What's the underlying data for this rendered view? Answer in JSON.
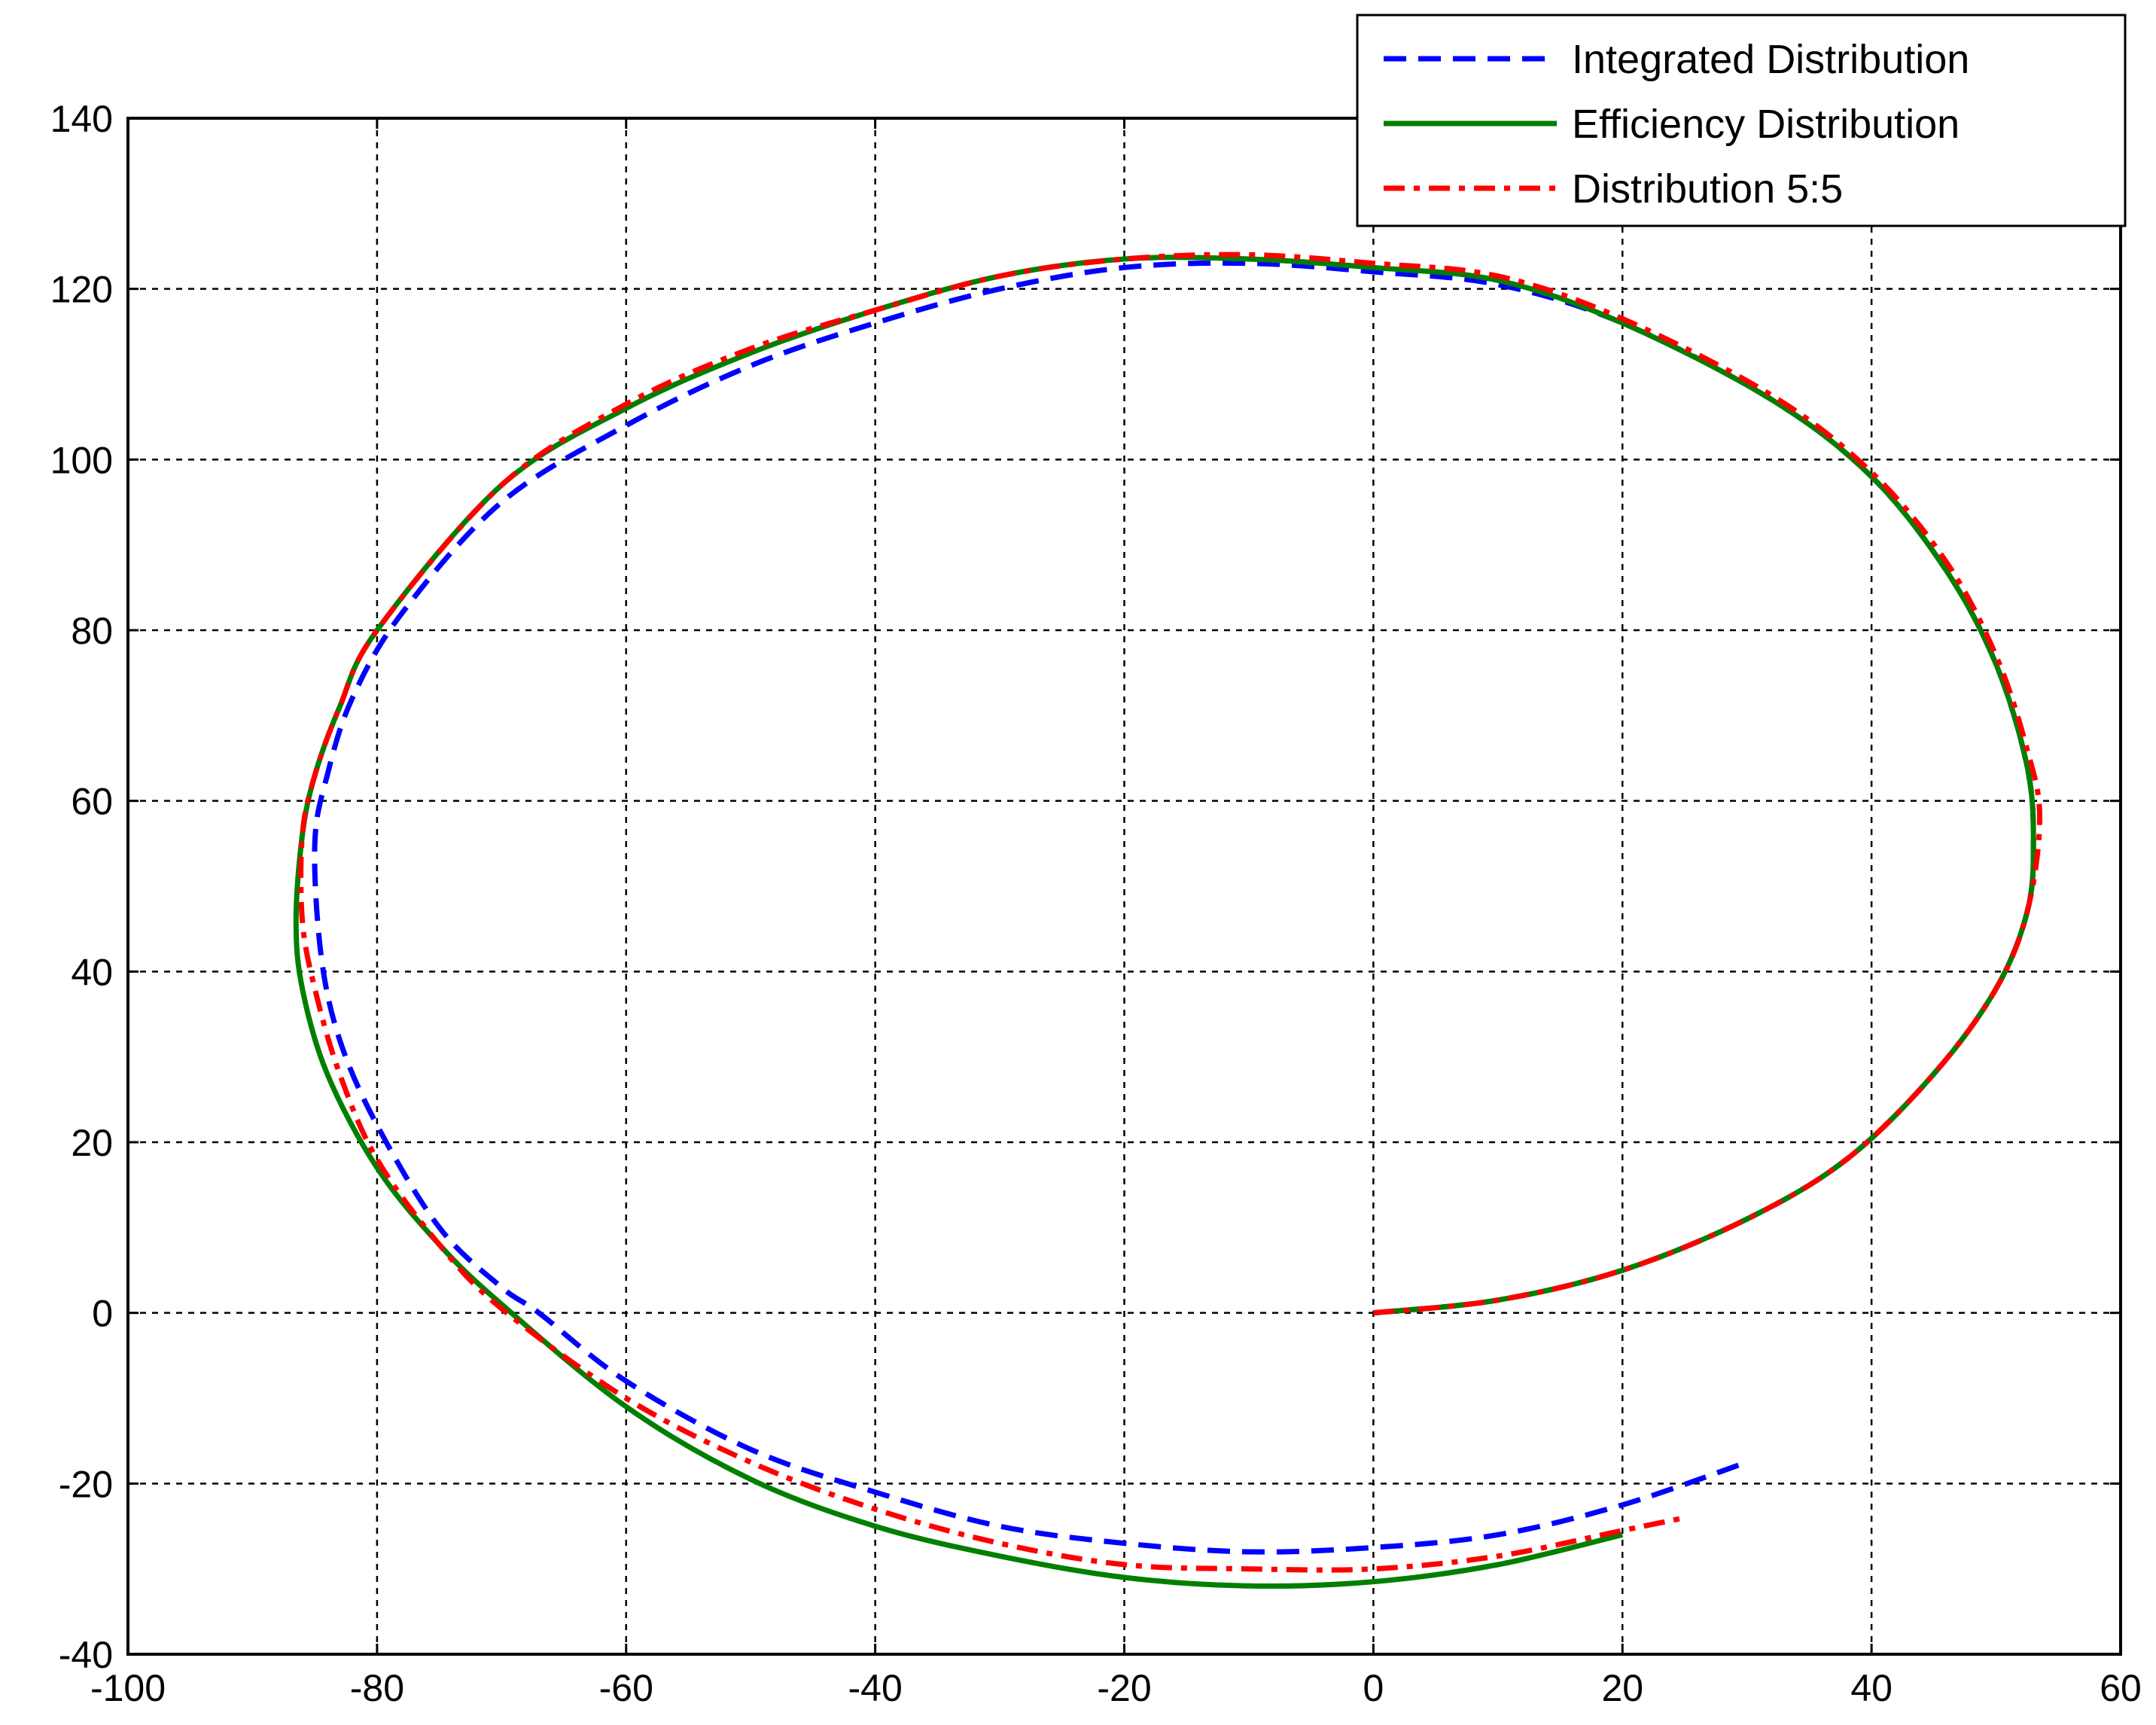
{
  "chart_data": {
    "type": "line",
    "title": "",
    "xlabel": "",
    "ylabel": "",
    "xlim": [
      -100,
      60
    ],
    "ylim": [
      -40,
      140
    ],
    "xticks": [
      -100,
      -80,
      -60,
      -40,
      -20,
      0,
      20,
      40,
      60
    ],
    "yticks": [
      -40,
      -20,
      0,
      20,
      40,
      60,
      80,
      100,
      120,
      140
    ],
    "xtick_labels": [
      "-100",
      "-80",
      "-60",
      "-40",
      "-20",
      "0",
      "20",
      "40",
      "60"
    ],
    "ytick_labels": [
      "-40",
      "-20",
      "0",
      "20",
      "40",
      "60",
      "80",
      "100",
      "120",
      "140"
    ],
    "grid": true,
    "legend_position": "top-right",
    "series": [
      {
        "name": "Integrated Distribution",
        "color": "#0000ff",
        "style": "dashed",
        "points": [
          [
            0,
            0
          ],
          [
            10,
            1.5
          ],
          [
            20,
            5
          ],
          [
            30,
            11
          ],
          [
            38,
            18
          ],
          [
            45,
            28
          ],
          [
            50,
            38
          ],
          [
            52.5,
            47
          ],
          [
            53,
            55
          ],
          [
            52.5,
            64
          ],
          [
            50,
            76
          ],
          [
            46,
            87
          ],
          [
            40,
            98
          ],
          [
            32,
            107
          ],
          [
            20,
            116
          ],
          [
            10,
            120.5
          ],
          [
            0,
            122
          ],
          [
            -10,
            123
          ],
          [
            -20,
            122.5
          ],
          [
            -30,
            120
          ],
          [
            -40,
            116
          ],
          [
            -50,
            111
          ],
          [
            -60,
            104
          ],
          [
            -70,
            95
          ],
          [
            -78,
            82
          ],
          [
            -82,
            72
          ],
          [
            -84,
            63
          ],
          [
            -85,
            55
          ],
          [
            -84.5,
            42
          ],
          [
            -83,
            32
          ],
          [
            -80,
            22
          ],
          [
            -75,
            10
          ],
          [
            -70,
            3
          ],
          [
            -67,
            0
          ],
          [
            -60,
            -8
          ],
          [
            -50,
            -16
          ],
          [
            -40,
            -21
          ],
          [
            -30,
            -25
          ],
          [
            -20,
            -27
          ],
          [
            -10,
            -28
          ],
          [
            0,
            -27.5
          ],
          [
            10,
            -26
          ],
          [
            20,
            -22.5
          ],
          [
            30,
            -17.5
          ]
        ]
      },
      {
        "name": "Efficiency Distribution",
        "color": "#007f00",
        "style": "solid",
        "points": [
          [
            0,
            0
          ],
          [
            10,
            1.5
          ],
          [
            20,
            5
          ],
          [
            30,
            11
          ],
          [
            38,
            18
          ],
          [
            45,
            28
          ],
          [
            50,
            38
          ],
          [
            52.5,
            47
          ],
          [
            53,
            55
          ],
          [
            52.5,
            64
          ],
          [
            50,
            76
          ],
          [
            46,
            87
          ],
          [
            40,
            98
          ],
          [
            32,
            107
          ],
          [
            20,
            116
          ],
          [
            10,
            121
          ],
          [
            0,
            122.5
          ],
          [
            -10,
            123.5
          ],
          [
            -20,
            123.5
          ],
          [
            -30,
            121.5
          ],
          [
            -40,
            117.5
          ],
          [
            -50,
            112.5
          ],
          [
            -60,
            106
          ],
          [
            -70,
            97
          ],
          [
            -80,
            80
          ],
          [
            -83,
            71
          ],
          [
            -85,
            63
          ],
          [
            -86,
            56
          ],
          [
            -86.5,
            46
          ],
          [
            -86,
            38
          ],
          [
            -84,
            28
          ],
          [
            -80,
            17
          ],
          [
            -75,
            8
          ],
          [
            -70,
            1
          ],
          [
            -60,
            -11
          ],
          [
            -50,
            -19.5
          ],
          [
            -40,
            -25
          ],
          [
            -30,
            -28.5
          ],
          [
            -20,
            -31
          ],
          [
            -10,
            -32
          ],
          [
            0,
            -31.5
          ],
          [
            10,
            -29.5
          ],
          [
            20,
            -26
          ]
        ]
      },
      {
        "name": "Distribution 5:5",
        "color": "#ff0000",
        "style": "dashdot",
        "points": [
          [
            0,
            0
          ],
          [
            10,
            1.5
          ],
          [
            20,
            5
          ],
          [
            30,
            11
          ],
          [
            38,
            18
          ],
          [
            45,
            28
          ],
          [
            50,
            38
          ],
          [
            52.5,
            47
          ],
          [
            53.5,
            58
          ],
          [
            52.5,
            66
          ],
          [
            50,
            77
          ],
          [
            46,
            88
          ],
          [
            40,
            98.5
          ],
          [
            32,
            107.5
          ],
          [
            20,
            116.5
          ],
          [
            10,
            121.5
          ],
          [
            0,
            123
          ],
          [
            -10,
            124
          ],
          [
            -20,
            123.5
          ],
          [
            -30,
            121.5
          ],
          [
            -40,
            117.5
          ],
          [
            -50,
            113
          ],
          [
            -60,
            106.5
          ],
          [
            -70,
            97
          ],
          [
            -80,
            80
          ],
          [
            -83,
            71
          ],
          [
            -85,
            63
          ],
          [
            -86,
            56
          ],
          [
            -86,
            46
          ],
          [
            -85,
            38
          ],
          [
            -83,
            28
          ],
          [
            -80,
            18
          ],
          [
            -75,
            8
          ],
          [
            -70,
            0.5
          ],
          [
            -60,
            -10
          ],
          [
            -50,
            -17.5
          ],
          [
            -40,
            -23
          ],
          [
            -30,
            -27
          ],
          [
            -20,
            -29.5
          ],
          [
            -10,
            -30
          ],
          [
            0,
            -30
          ],
          [
            10,
            -28.5
          ],
          [
            20,
            -25.5
          ],
          [
            25,
            -24
          ]
        ]
      }
    ]
  }
}
